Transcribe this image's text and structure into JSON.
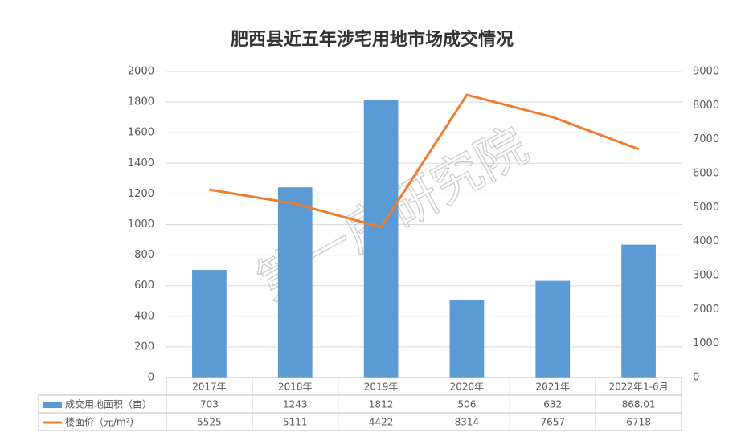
{
  "chart_data": {
    "type": "bar_line",
    "title": "肥西县近五年涉宅用地市场成交情况",
    "watermark": "第一房研究院",
    "categories": [
      "2017年",
      "2018年",
      "2019年",
      "2020年",
      "2021年",
      "2022年1-6月"
    ],
    "series": [
      {
        "name": "成交用地面积（亩）",
        "type": "bar",
        "color": "#5b9bd5",
        "values": [
          703,
          1243,
          1812,
          506,
          632,
          868.01
        ]
      },
      {
        "name": "楼面价（元/m²）",
        "type": "line",
        "axis": "y2",
        "color": "#ed7d31",
        "values": [
          5525,
          5111,
          4422,
          8314,
          7657,
          6718
        ]
      }
    ],
    "ylim": [
      0,
      2000
    ],
    "yticks": [
      0,
      200,
      400,
      600,
      800,
      1000,
      1200,
      1400,
      1600,
      1800,
      2000
    ],
    "y2lim": [
      0,
      9000
    ],
    "y2ticks": [
      0,
      1000,
      2000,
      3000,
      4000,
      5000,
      6000,
      7000,
      8000,
      9000
    ],
    "grid": true
  }
}
